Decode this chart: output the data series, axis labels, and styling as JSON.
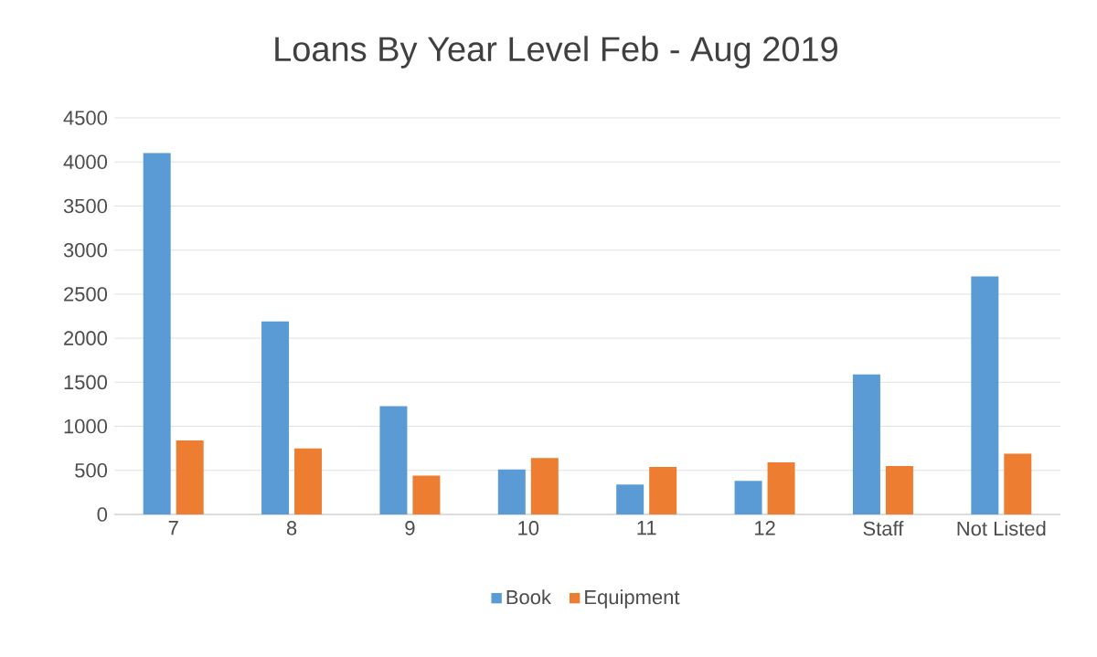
{
  "chart_data": {
    "type": "bar",
    "title": "Loans By Year Level Feb - Aug 2019",
    "categories": [
      "7",
      "8",
      "9",
      "10",
      "11",
      "12",
      "Staff",
      "Not Listed"
    ],
    "series": [
      {
        "name": "Book",
        "color": "#5b9bd5",
        "values": [
          4100,
          2190,
          1230,
          510,
          340,
          380,
          1590,
          2700
        ]
      },
      {
        "name": "Equipment",
        "color": "#ed7d31",
        "values": [
          840,
          750,
          440,
          640,
          540,
          590,
          550,
          690
        ]
      }
    ],
    "ylim": [
      0,
      4500
    ],
    "yticks": [
      0,
      500,
      1000,
      1500,
      2000,
      2500,
      3000,
      3500,
      4000,
      4500
    ],
    "grid": "y",
    "legend": "bottom"
  }
}
